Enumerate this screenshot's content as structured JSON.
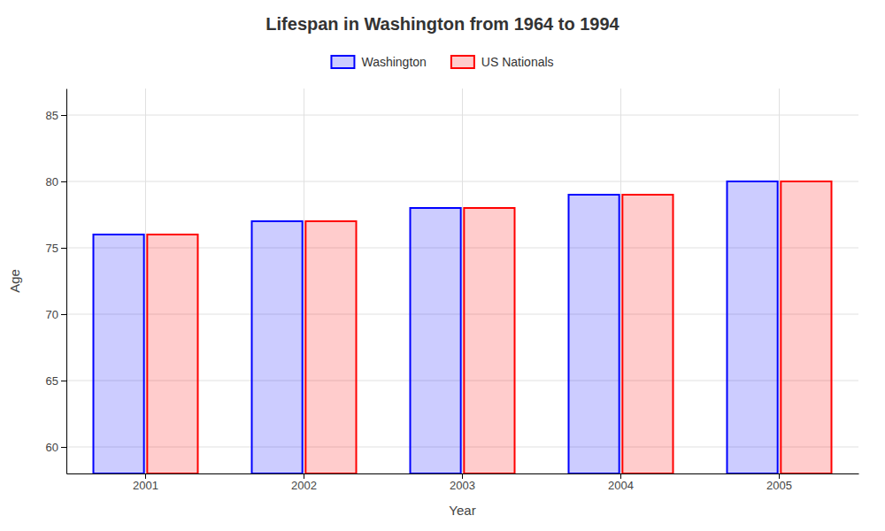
{
  "chart_data": {
    "type": "bar",
    "title": "Lifespan in Washington from 1964 to 1994",
    "xlabel": "Year",
    "ylabel": "Age",
    "categories": [
      "2001",
      "2002",
      "2003",
      "2004",
      "2005"
    ],
    "series": [
      {
        "name": "Washington",
        "color": "#0000ff",
        "values": [
          76,
          77,
          78,
          79,
          80
        ]
      },
      {
        "name": "US Nationals",
        "color": "#ff0000",
        "values": [
          76,
          77,
          78,
          79,
          80
        ]
      }
    ],
    "ylim": [
      58,
      87
    ],
    "yticks": [
      60,
      65,
      70,
      75,
      80,
      85
    ],
    "grid": true,
    "legend": "top"
  }
}
